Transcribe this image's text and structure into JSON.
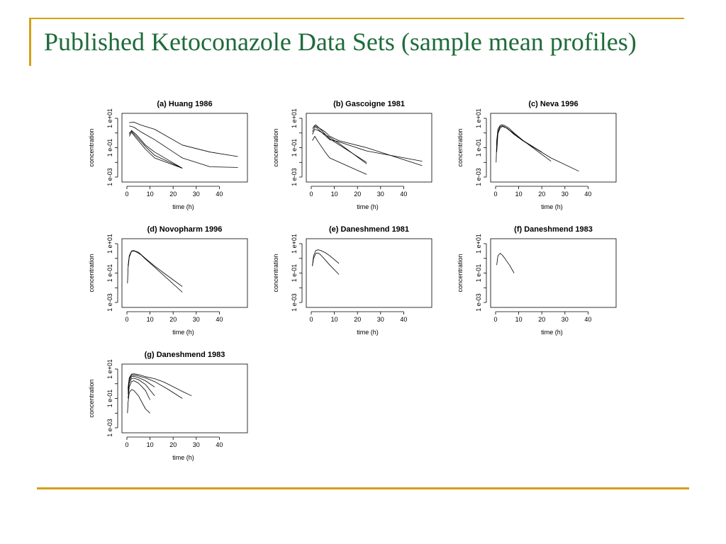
{
  "slide": {
    "title": "Published Ketoconazole Data Sets (sample mean profiles)",
    "accent_color": "#d4a017",
    "title_color": "#1e6b3a"
  },
  "chart_data": [
    {
      "type": "line",
      "title": "(a) Huang 1986",
      "xlabel": "time (h)",
      "ylabel": "concentration",
      "x_ticks": [
        "0",
        "10",
        "20",
        "30",
        "40"
      ],
      "y_ticks": [
        "1 e-03",
        "1 e-01",
        "1 e+01"
      ],
      "xlim": [
        0,
        50
      ],
      "ylim": [
        0.001,
        10
      ],
      "log_y": true,
      "series": [
        {
          "points": [
            [
              1,
              5
            ],
            [
              3,
              5.5
            ],
            [
              6,
              3.5
            ],
            [
              12,
              1.8
            ],
            [
              24,
              0.15
            ],
            [
              36,
              0.05
            ],
            [
              48,
              0.025
            ]
          ]
        },
        {
          "points": [
            [
              1,
              3
            ],
            [
              3,
              2.5
            ],
            [
              6,
              1.2
            ],
            [
              12,
              0.35
            ],
            [
              24,
              0.02
            ],
            [
              36,
              0.005
            ],
            [
              48,
              0.0045
            ]
          ]
        },
        {
          "points": [
            [
              1,
              1
            ],
            [
              2,
              1.3
            ],
            [
              4,
              0.6
            ],
            [
              8,
              0.12
            ],
            [
              12,
              0.03
            ],
            [
              24,
              0.004
            ]
          ]
        },
        {
          "points": [
            [
              1,
              0.8
            ],
            [
              2,
              1.5
            ],
            [
              4,
              0.8
            ],
            [
              8,
              0.15
            ],
            [
              12,
              0.05
            ],
            [
              24,
              0.004
            ]
          ]
        },
        {
          "points": [
            [
              1,
              0.6
            ],
            [
              2,
              1.1
            ],
            [
              4,
              0.45
            ],
            [
              8,
              0.08
            ],
            [
              12,
              0.02
            ],
            [
              24,
              0.004
            ]
          ]
        }
      ]
    },
    {
      "type": "line",
      "title": "(b) Gascoigne 1981",
      "xlabel": "time (h)",
      "ylabel": "concentration",
      "x_ticks": [
        "0",
        "10",
        "20",
        "30",
        "40"
      ],
      "y_ticks": [
        "1 e-03",
        "1 e-01",
        "1 e+01"
      ],
      "xlim": [
        0,
        50
      ],
      "ylim": [
        0.001,
        10
      ],
      "log_y": true,
      "series": [
        {
          "points": [
            [
              0.5,
              1.2
            ],
            [
              1.5,
              2.5
            ],
            [
              2.5,
              2.2
            ],
            [
              4,
              1.3
            ],
            [
              8,
              0.35
            ],
            [
              12,
              0.25
            ],
            [
              24,
              0.06
            ],
            [
              48,
              0.012
            ]
          ]
        },
        {
          "points": [
            [
              0.5,
              2
            ],
            [
              1.5,
              3
            ],
            [
              3,
              2.4
            ],
            [
              6,
              1.2
            ],
            [
              8,
              0.6
            ],
            [
              12,
              0.3
            ],
            [
              24,
              0.1
            ],
            [
              48,
              0.006
            ]
          ]
        },
        {
          "points": [
            [
              0.5,
              0.8
            ],
            [
              1.5,
              1.8
            ],
            [
              3,
              1.5
            ],
            [
              6,
              0.8
            ],
            [
              12,
              0.2
            ],
            [
              24,
              0.008
            ]
          ]
        },
        {
          "points": [
            [
              0.5,
              0.3
            ],
            [
              1.5,
              0.6
            ],
            [
              3,
              0.25
            ],
            [
              6,
              0.05
            ],
            [
              8,
              0.02
            ],
            [
              24,
              0.0015
            ]
          ]
        },
        {
          "points": [
            [
              1,
              2.8
            ],
            [
              2,
              3.6
            ],
            [
              4,
              1.8
            ],
            [
              8,
              0.4
            ],
            [
              24,
              0.01
            ]
          ]
        }
      ]
    },
    {
      "type": "line",
      "title": "(c) Neva 1996",
      "xlabel": "time (h)",
      "ylabel": "concentration",
      "x_ticks": [
        "0",
        "10",
        "20",
        "30",
        "40"
      ],
      "y_ticks": [
        "1 e-03",
        "1 e-01",
        "1 e+01"
      ],
      "xlim": [
        0,
        50
      ],
      "ylim": [
        0.001,
        10
      ],
      "log_y": true,
      "series": [
        {
          "points": [
            [
              0.25,
              0.01
            ],
            [
              0.5,
              0.3
            ],
            [
              1,
              1.8
            ],
            [
              2,
              3.3
            ],
            [
              3,
              3.6
            ],
            [
              4,
              3.2
            ],
            [
              6,
              2
            ],
            [
              8,
              1
            ],
            [
              12,
              0.3
            ],
            [
              24,
              0.012
            ]
          ]
        },
        {
          "points": [
            [
              0.5,
              0.15
            ],
            [
              1,
              1.2
            ],
            [
              2,
              2.8
            ],
            [
              3,
              3
            ],
            [
              4,
              2.6
            ],
            [
              6,
              1.5
            ],
            [
              8,
              0.8
            ],
            [
              12,
              0.28
            ],
            [
              24,
              0.02
            ],
            [
              36,
              0.0025
            ]
          ]
        },
        {
          "points": [
            [
              0.5,
              0.05
            ],
            [
              1,
              0.9
            ],
            [
              2,
              2.2
            ],
            [
              3,
              2.8
            ],
            [
              5,
              2.1
            ],
            [
              8,
              0.9
            ],
            [
              12,
              0.3
            ],
            [
              20,
              0.05
            ]
          ]
        }
      ]
    },
    {
      "type": "line",
      "title": "(d) Novopharm 1996",
      "xlabel": "time (h)",
      "ylabel": "concentration",
      "x_ticks": [
        "0",
        "10",
        "20",
        "30",
        "40"
      ],
      "y_ticks": [
        "1 e-03",
        "1 e-01",
        "1 e+01"
      ],
      "xlim": [
        0,
        50
      ],
      "ylim": [
        0.001,
        10
      ],
      "log_y": true,
      "series": [
        {
          "points": [
            [
              0.25,
              0.02
            ],
            [
              0.5,
              0.2
            ],
            [
              1,
              1.2
            ],
            [
              2,
              3
            ],
            [
              3,
              3.2
            ],
            [
              4,
              2.8
            ],
            [
              6,
              1.8
            ],
            [
              8,
              0.9
            ],
            [
              12,
              0.25
            ],
            [
              24,
              0.005
            ]
          ]
        },
        {
          "points": [
            [
              0.5,
              0.3
            ],
            [
              1,
              1.5
            ],
            [
              2,
              3.2
            ],
            [
              3,
              3.4
            ],
            [
              5,
              2.6
            ],
            [
              8,
              1
            ],
            [
              12,
              0.3
            ],
            [
              16,
              0.1
            ],
            [
              24,
              0.012
            ]
          ]
        }
      ]
    },
    {
      "type": "line",
      "title": "(e) Daneshmend 1981",
      "xlabel": "time (h)",
      "ylabel": "concentration",
      "x_ticks": [
        "0",
        "10",
        "20",
        "30",
        "40"
      ],
      "y_ticks": [
        "1 e-03",
        "1 e-01",
        "1 e+01"
      ],
      "xlim": [
        0,
        50
      ],
      "ylim": [
        0.001,
        10
      ],
      "log_y": true,
      "series": [
        {
          "points": [
            [
              0.5,
              0.3
            ],
            [
              1,
              1.5
            ],
            [
              2,
              3.5
            ],
            [
              3,
              3.8
            ],
            [
              4,
              3.5
            ],
            [
              6,
              2.5
            ],
            [
              8,
              1.5
            ],
            [
              12,
              0.45
            ]
          ]
        },
        {
          "points": [
            [
              0.5,
              0.3
            ],
            [
              1,
              1.0
            ],
            [
              2,
              2.2
            ],
            [
              3,
              2.3
            ],
            [
              4,
              1.8
            ],
            [
              6,
              0.8
            ],
            [
              8,
              0.35
            ],
            [
              12,
              0.08
            ]
          ]
        }
      ]
    },
    {
      "type": "line",
      "title": "(f) Daneshmend 1983",
      "xlabel": "time (h)",
      "ylabel": "concentration",
      "x_ticks": [
        "0",
        "10",
        "20",
        "30",
        "40"
      ],
      "y_ticks": [
        "1 e-03",
        "1 e-01",
        "1 e+01"
      ],
      "xlim": [
        0,
        50
      ],
      "ylim": [
        0.001,
        10
      ],
      "log_y": true,
      "series": [
        {
          "points": [
            [
              0.5,
              0.35
            ],
            [
              1,
              1.5
            ],
            [
              2,
              2.2
            ],
            [
              3,
              1.6
            ],
            [
              4,
              1.0
            ],
            [
              6,
              0.35
            ],
            [
              8,
              0.1
            ]
          ]
        }
      ]
    },
    {
      "type": "line",
      "title": "(g) Daneshmend 1983",
      "xlabel": "time (h)",
      "ylabel": "concentration",
      "x_ticks": [
        "0",
        "10",
        "20",
        "30",
        "40"
      ],
      "y_ticks": [
        "1 e-03",
        "1 e-01",
        "1 e+01"
      ],
      "xlim": [
        0,
        50
      ],
      "ylim": [
        0.001,
        10
      ],
      "log_y": true,
      "series": [
        {
          "points": [
            [
              0.5,
              0.5
            ],
            [
              1,
              2.5
            ],
            [
              2,
              4.5
            ],
            [
              3,
              4.8
            ],
            [
              5,
              4.2
            ],
            [
              8,
              3
            ],
            [
              12,
              2.2
            ],
            [
              16,
              1.3
            ],
            [
              24,
              0.3
            ],
            [
              28,
              0.15
            ]
          ]
        },
        {
          "points": [
            [
              0.5,
              0.4
            ],
            [
              1,
              2
            ],
            [
              2,
              3.8
            ],
            [
              3,
              4
            ],
            [
              5,
              3.4
            ],
            [
              8,
              2.5
            ],
            [
              12,
              1.4
            ],
            [
              18,
              0.4
            ],
            [
              24,
              0.1
            ]
          ]
        },
        {
          "points": [
            [
              0.5,
              0.3
            ],
            [
              1,
              1.5
            ],
            [
              2,
              3
            ],
            [
              3,
              3.2
            ],
            [
              5,
              2.6
            ],
            [
              8,
              1.6
            ],
            [
              12,
              0.6
            ]
          ]
        },
        {
          "points": [
            [
              0.5,
              0.2
            ],
            [
              1,
              1.1
            ],
            [
              2,
              2.2
            ],
            [
              3,
              2.4
            ],
            [
              5,
              1.9
            ],
            [
              8,
              0.9
            ],
            [
              12,
              0.15
            ]
          ]
        },
        {
          "points": [
            [
              0.5,
              0.1
            ],
            [
              1,
              0.6
            ],
            [
              2,
              1.4
            ],
            [
              3,
              1.6
            ],
            [
              5,
              1.1
            ],
            [
              8,
              0.35
            ],
            [
              10,
              0.08
            ]
          ]
        },
        {
          "points": [
            [
              0.25,
              0.01
            ],
            [
              0.5,
              0.05
            ],
            [
              1,
              0.25
            ],
            [
              2,
              0.4
            ],
            [
              3,
              0.35
            ],
            [
              5,
              0.15
            ],
            [
              8,
              0.02
            ],
            [
              10,
              0.01
            ]
          ]
        }
      ]
    }
  ]
}
